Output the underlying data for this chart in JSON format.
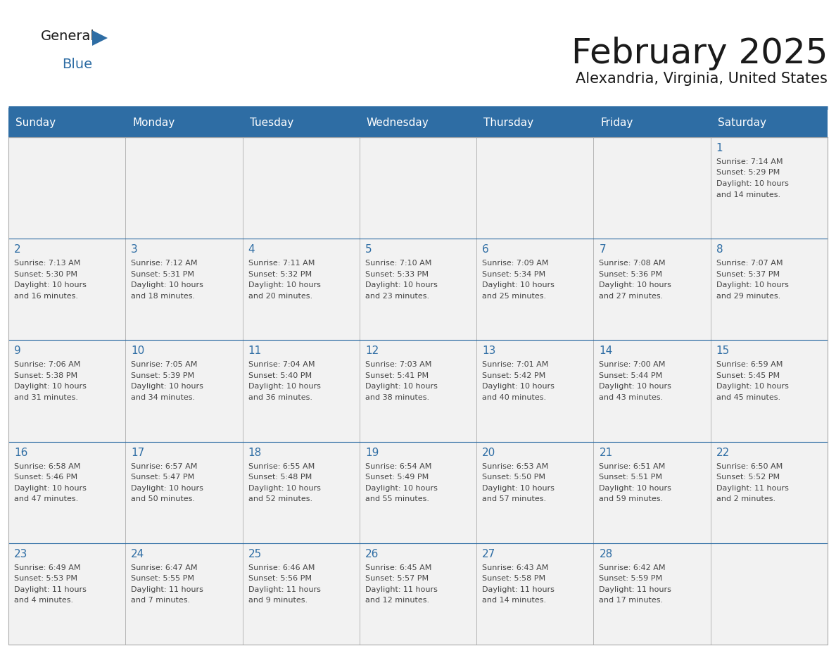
{
  "title": "February 2025",
  "subtitle": "Alexandria, Virginia, United States",
  "header_bg": "#2E6DA4",
  "header_text_color": "#FFFFFF",
  "cell_bg": "#F2F2F2",
  "day_number_color": "#2E6DA4",
  "text_color": "#444444",
  "border_color": "#AAAAAA",
  "line_color": "#2E6DA4",
  "days_of_week": [
    "Sunday",
    "Monday",
    "Tuesday",
    "Wednesday",
    "Thursday",
    "Friday",
    "Saturday"
  ],
  "weeks": [
    [
      {
        "day": null,
        "info": null
      },
      {
        "day": null,
        "info": null
      },
      {
        "day": null,
        "info": null
      },
      {
        "day": null,
        "info": null
      },
      {
        "day": null,
        "info": null
      },
      {
        "day": null,
        "info": null
      },
      {
        "day": 1,
        "info": "Sunrise: 7:14 AM\nSunset: 5:29 PM\nDaylight: 10 hours\nand 14 minutes."
      }
    ],
    [
      {
        "day": 2,
        "info": "Sunrise: 7:13 AM\nSunset: 5:30 PM\nDaylight: 10 hours\nand 16 minutes."
      },
      {
        "day": 3,
        "info": "Sunrise: 7:12 AM\nSunset: 5:31 PM\nDaylight: 10 hours\nand 18 minutes."
      },
      {
        "day": 4,
        "info": "Sunrise: 7:11 AM\nSunset: 5:32 PM\nDaylight: 10 hours\nand 20 minutes."
      },
      {
        "day": 5,
        "info": "Sunrise: 7:10 AM\nSunset: 5:33 PM\nDaylight: 10 hours\nand 23 minutes."
      },
      {
        "day": 6,
        "info": "Sunrise: 7:09 AM\nSunset: 5:34 PM\nDaylight: 10 hours\nand 25 minutes."
      },
      {
        "day": 7,
        "info": "Sunrise: 7:08 AM\nSunset: 5:36 PM\nDaylight: 10 hours\nand 27 minutes."
      },
      {
        "day": 8,
        "info": "Sunrise: 7:07 AM\nSunset: 5:37 PM\nDaylight: 10 hours\nand 29 minutes."
      }
    ],
    [
      {
        "day": 9,
        "info": "Sunrise: 7:06 AM\nSunset: 5:38 PM\nDaylight: 10 hours\nand 31 minutes."
      },
      {
        "day": 10,
        "info": "Sunrise: 7:05 AM\nSunset: 5:39 PM\nDaylight: 10 hours\nand 34 minutes."
      },
      {
        "day": 11,
        "info": "Sunrise: 7:04 AM\nSunset: 5:40 PM\nDaylight: 10 hours\nand 36 minutes."
      },
      {
        "day": 12,
        "info": "Sunrise: 7:03 AM\nSunset: 5:41 PM\nDaylight: 10 hours\nand 38 minutes."
      },
      {
        "day": 13,
        "info": "Sunrise: 7:01 AM\nSunset: 5:42 PM\nDaylight: 10 hours\nand 40 minutes."
      },
      {
        "day": 14,
        "info": "Sunrise: 7:00 AM\nSunset: 5:44 PM\nDaylight: 10 hours\nand 43 minutes."
      },
      {
        "day": 15,
        "info": "Sunrise: 6:59 AM\nSunset: 5:45 PM\nDaylight: 10 hours\nand 45 minutes."
      }
    ],
    [
      {
        "day": 16,
        "info": "Sunrise: 6:58 AM\nSunset: 5:46 PM\nDaylight: 10 hours\nand 47 minutes."
      },
      {
        "day": 17,
        "info": "Sunrise: 6:57 AM\nSunset: 5:47 PM\nDaylight: 10 hours\nand 50 minutes."
      },
      {
        "day": 18,
        "info": "Sunrise: 6:55 AM\nSunset: 5:48 PM\nDaylight: 10 hours\nand 52 minutes."
      },
      {
        "day": 19,
        "info": "Sunrise: 6:54 AM\nSunset: 5:49 PM\nDaylight: 10 hours\nand 55 minutes."
      },
      {
        "day": 20,
        "info": "Sunrise: 6:53 AM\nSunset: 5:50 PM\nDaylight: 10 hours\nand 57 minutes."
      },
      {
        "day": 21,
        "info": "Sunrise: 6:51 AM\nSunset: 5:51 PM\nDaylight: 10 hours\nand 59 minutes."
      },
      {
        "day": 22,
        "info": "Sunrise: 6:50 AM\nSunset: 5:52 PM\nDaylight: 11 hours\nand 2 minutes."
      }
    ],
    [
      {
        "day": 23,
        "info": "Sunrise: 6:49 AM\nSunset: 5:53 PM\nDaylight: 11 hours\nand 4 minutes."
      },
      {
        "day": 24,
        "info": "Sunrise: 6:47 AM\nSunset: 5:55 PM\nDaylight: 11 hours\nand 7 minutes."
      },
      {
        "day": 25,
        "info": "Sunrise: 6:46 AM\nSunset: 5:56 PM\nDaylight: 11 hours\nand 9 minutes."
      },
      {
        "day": 26,
        "info": "Sunrise: 6:45 AM\nSunset: 5:57 PM\nDaylight: 11 hours\nand 12 minutes."
      },
      {
        "day": 27,
        "info": "Sunrise: 6:43 AM\nSunset: 5:58 PM\nDaylight: 11 hours\nand 14 minutes."
      },
      {
        "day": 28,
        "info": "Sunrise: 6:42 AM\nSunset: 5:59 PM\nDaylight: 11 hours\nand 17 minutes."
      },
      {
        "day": null,
        "info": null
      }
    ]
  ],
  "logo_general_color": "#1a1a1a",
  "logo_blue_color": "#2E6DA4",
  "logo_triangle_color": "#2E6DA4",
  "title_fontsize": 36,
  "subtitle_fontsize": 15,
  "header_fontsize": 11,
  "day_num_fontsize": 11,
  "cell_text_fontsize": 8
}
